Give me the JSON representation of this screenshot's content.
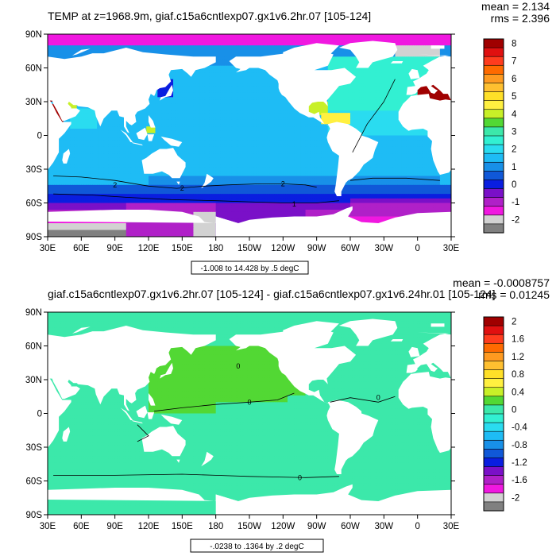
{
  "chart_data": [
    {
      "type": "map",
      "title": "TEMP at z=1968.9m, giaf.c15a6cntlexp07.gx1v6.2hr.07 [105-124]",
      "stats": {
        "mean": "mean = 2.134",
        "rms": "rms = 2.396"
      },
      "info_label": "-1.008 to 14.428 by .5 degC",
      "lat_ticks": [
        "90N",
        "60N",
        "30N",
        "0",
        "30S",
        "60S",
        "90S"
      ],
      "lon_ticks": [
        "30E",
        "60E",
        "90E",
        "120E",
        "150E",
        "180",
        "150W",
        "120W",
        "90W",
        "60W",
        "30W",
        "0",
        "30E"
      ],
      "colorbar": {
        "labels": [
          "8",
          "7",
          "6",
          "5",
          "4",
          "3",
          "2",
          "1",
          "0",
          "-1",
          "-2"
        ],
        "colors": [
          "#a00000",
          "#e01010",
          "#ff3c1e",
          "#ff6a00",
          "#ff9a20",
          "#ffc030",
          "#ffe028",
          "#fff040",
          "#c8f028",
          "#52d834",
          "#3ce8aa",
          "#32f0d2",
          "#2adcf0",
          "#1ebcf5",
          "#1890e8",
          "#1058d8",
          "#0a1ee0",
          "#7a10c8",
          "#b020c8",
          "#f018e0",
          "#d2d2d2",
          "#808080"
        ]
      },
      "contour_labels": [
        "2",
        "2",
        "2",
        "1"
      ],
      "regions": {
        "pacific": 2.2,
        "north_pacific": 2.0,
        "south_pacific": 2.0,
        "north_atlantic": 3.5,
        "subpolar_atlantic": 3.9,
        "south_atlantic": 2.6,
        "indian_ocean": 2.1,
        "arctic": -0.5,
        "southern_ocean": 0.5,
        "weddell": -0.5,
        "ross": -0.6,
        "ross_near": -1.2,
        "mediterranean": 13.0,
        "red_sea": 13.0,
        "japan_sea": 0.6,
        "greenland_sea": -1.3,
        "gulf_of_mexico": 4.5,
        "caribbean": 5.0,
        "persian_gulf": 4.5,
        "arabian": 3.0,
        "celebes": 4.5,
        "misc": 1.5
      }
    },
    {
      "type": "map",
      "title": "giaf.c15a6cntlexp07.gx1v6.2hr.07 [105-124] - giaf.c15a6cntlexp07.gx1v6.24hr.01 [105-124]",
      "stats": {
        "mean": "mean = -0.0008757",
        "rms": "rms = 0.01245"
      },
      "info_label": "-.0238 to .1364 by .2 degC",
      "lat_ticks": [
        "90N",
        "60N",
        "30N",
        "0",
        "30S",
        "60S",
        "90S"
      ],
      "lon_ticks": [
        "30E",
        "60E",
        "90E",
        "120E",
        "150E",
        "180",
        "150W",
        "120W",
        "90W",
        "60W",
        "30W",
        "0",
        "30E"
      ],
      "colorbar": {
        "labels": [
          "2",
          "1.6",
          "1.2",
          "0.8",
          "0.4",
          "0",
          "-0.4",
          "-0.8",
          "-1.2",
          "-1.6",
          "-2"
        ],
        "colors": [
          "#a00000",
          "#e01010",
          "#ff3c1e",
          "#ff6a00",
          "#ff9a20",
          "#ffc030",
          "#ffe028",
          "#fff040",
          "#c8f028",
          "#52d834",
          "#3ce8aa",
          "#32f0d2",
          "#2adcf0",
          "#1ebcf5",
          "#1890e8",
          "#1058d8",
          "#0a1ee0",
          "#7a10c8",
          "#b020c8",
          "#f018e0",
          "#d2d2d2",
          "#808080"
        ]
      },
      "contour_labels": [
        "0",
        "0",
        "0",
        "0"
      ],
      "regions": {
        "base": -0.01,
        "north_pacific": 0.05,
        "north_atlantic": 0.03,
        "australia_sea": 0.03,
        "arabian": 0.03,
        "southern_ocean": 0.03,
        "weddell": 0.02,
        "arctic": -0.01
      }
    }
  ]
}
